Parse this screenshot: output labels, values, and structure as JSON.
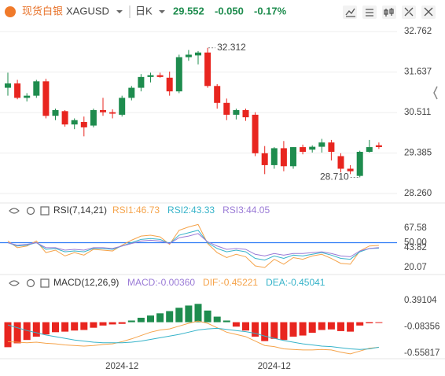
{
  "header": {
    "name": "现货白银",
    "symbol": "XAGUSD",
    "period": "日K",
    "price": "29.552",
    "change": "-0.050",
    "change_pct": "-0.17%"
  },
  "chart_data": [
    {
      "type": "candlestick",
      "up_color": "#1e8c4e",
      "down_color": "#e8251f",
      "open": [
        31.2,
        31.32,
        30.92,
        30.98,
        31.38,
        30.42,
        30.55,
        30.18,
        30.25,
        30.15,
        30.58,
        30.52,
        30.45,
        30.92,
        31.2,
        31.5,
        31.55,
        31.48,
        31.1,
        32.05,
        32.1,
        32.18,
        31.25,
        30.78,
        30.45,
        30.58,
        30.45,
        29.38,
        29.05,
        29.52,
        29.02,
        29.55,
        29.48,
        29.56,
        29.68,
        29.3,
        28.95,
        28.75,
        29.42,
        29.602
      ],
      "high": [
        31.62,
        31.42,
        31.05,
        31.42,
        31.45,
        30.62,
        30.58,
        30.35,
        30.4,
        30.62,
        30.92,
        30.6,
        30.98,
        31.25,
        31.58,
        31.62,
        31.62,
        31.65,
        32.12,
        32.25,
        32.22,
        32.312,
        31.3,
        30.9,
        30.62,
        30.62,
        30.52,
        29.58,
        29.55,
        29.72,
        29.55,
        29.62,
        29.6,
        29.78,
        29.75,
        29.38,
        29.05,
        29.45,
        29.75,
        29.68
      ],
      "low": [
        30.98,
        30.88,
        30.82,
        30.92,
        30.35,
        30.3,
        30.12,
        30.05,
        29.85,
        30.1,
        30.42,
        30.35,
        30.4,
        30.85,
        31.1,
        31.35,
        31.48,
        30.98,
        31.05,
        31.95,
        31.85,
        31.2,
        30.62,
        30.3,
        30.32,
        30.28,
        29.3,
        28.8,
        28.95,
        28.88,
        28.95,
        29.35,
        29.4,
        29.4,
        29.18,
        28.85,
        28.8,
        28.71,
        29.4,
        29.5
      ],
      "close": [
        31.32,
        30.92,
        30.98,
        31.38,
        30.42,
        30.58,
        30.18,
        30.3,
        30.1,
        30.58,
        30.52,
        30.48,
        30.92,
        31.2,
        31.5,
        31.55,
        31.5,
        31.1,
        32.05,
        32.12,
        32.18,
        31.25,
        30.78,
        30.45,
        30.58,
        30.38,
        29.38,
        29.05,
        29.52,
        29.02,
        29.55,
        29.42,
        29.56,
        29.68,
        29.42,
        28.95,
        28.88,
        29.42,
        29.55,
        29.552
      ],
      "annotations": [
        "32.312",
        "28.710"
      ],
      "ylim": [
        28.13,
        32.94
      ],
      "yticks": [
        32.762,
        31.637,
        30.511,
        29.385,
        {
          "value": 28.26,
          "label": "28.260"
        }
      ],
      "grid": true
    },
    {
      "type": "line",
      "title": "RSI(7,14,21)",
      "ylim": [
        12.5,
        75.2
      ],
      "yticks": [
        67.58,
        {
          "value": 50,
          "label": "50.00"
        },
        43.82,
        20.07
      ],
      "reference_tick": 1,
      "reference_color": "#2f7cf6",
      "series": [
        {
          "name": "RSI1:46.73",
          "color": "#f5a34a",
          "values": [
            52,
            44,
            46,
            52,
            38,
            41,
            34,
            38,
            35,
            42,
            41,
            40,
            47,
            53,
            58,
            59,
            57,
            48,
            65,
            69,
            72,
            49,
            38,
            32,
            36,
            33,
            22,
            20,
            30,
            24,
            32,
            30,
            34,
            36,
            31,
            25,
            24,
            40,
            46,
            46.73
          ]
        },
        {
          "name": "RSI2:43.33",
          "color": "#36b3c9",
          "values": [
            50,
            46,
            47,
            50,
            42,
            43,
            39,
            40,
            39,
            43,
            43,
            42,
            46,
            50,
            54,
            55,
            54,
            49,
            59,
            62,
            65,
            50,
            43,
            39,
            41,
            39,
            31,
            29,
            34,
            31,
            35,
            34,
            36,
            38,
            35,
            31,
            30,
            39,
            43,
            43.33
          ]
        },
        {
          "name": "RSI3:44.05",
          "color": "#9a7ad6",
          "values": [
            50,
            47,
            48,
            50,
            44,
            44,
            41,
            42,
            41,
            44,
            44,
            43,
            46,
            49,
            52,
            53,
            52,
            49,
            56,
            58,
            61,
            51,
            46,
            42,
            43,
            42,
            36,
            34,
            37,
            35,
            37,
            37,
            38,
            39,
            37,
            34,
            33,
            40,
            43,
            44.05
          ]
        }
      ]
    },
    {
      "type": "macd",
      "title": "MACD(12,26,9)",
      "ylim": [
        -0.643,
        0.561
      ],
      "yticks": [
        0.39104,
        -0.08356,
        -0.55817
      ],
      "categories": [
        null,
        null,
        null,
        null,
        null,
        null,
        null,
        null,
        null,
        null,
        null,
        null,
        "2024-12",
        null,
        null,
        null,
        null,
        null,
        null,
        null,
        null,
        null,
        null,
        null,
        null,
        null,
        null,
        null,
        "2024-12",
        null,
        null,
        null,
        null,
        null,
        null,
        null,
        null,
        null,
        null,
        null
      ],
      "series": [
        {
          "name": "MACD:-0.00360",
          "kind": "bar",
          "color": "#9a7ad6",
          "up_color": "#1e8c4e",
          "down_color": "#e8251f",
          "values": [
            -0.45,
            -0.38,
            -0.32,
            -0.26,
            -0.22,
            -0.18,
            -0.17,
            -0.15,
            -0.14,
            -0.1,
            -0.06,
            -0.04,
            -0.03,
            0.03,
            0.08,
            0.12,
            0.16,
            0.2,
            0.26,
            0.3,
            0.33,
            0.21,
            0.1,
            0.03,
            -0.08,
            -0.15,
            -0.26,
            -0.34,
            -0.3,
            -0.32,
            -0.26,
            -0.24,
            -0.19,
            -0.14,
            -0.13,
            -0.16,
            -0.17,
            -0.06,
            -0.02,
            -0.0036
          ]
        },
        {
          "name": "DIF:-0.45221",
          "kind": "line",
          "color": "#f5a34a",
          "values": [
            -0.35,
            -0.36,
            -0.37,
            -0.36,
            -0.38,
            -0.39,
            -0.41,
            -0.42,
            -0.43,
            -0.42,
            -0.4,
            -0.39,
            -0.35,
            -0.3,
            -0.24,
            -0.18,
            -0.14,
            -0.12,
            -0.07,
            -0.02,
            0.02,
            -0.02,
            -0.1,
            -0.18,
            -0.22,
            -0.26,
            -0.34,
            -0.42,
            -0.44,
            -0.48,
            -0.49,
            -0.5,
            -0.5,
            -0.49,
            -0.5,
            -0.54,
            -0.57,
            -0.52,
            -0.47,
            -0.45221
          ]
        },
        {
          "name": "DEA:-0.45041",
          "kind": "line",
          "color": "#36b3c9",
          "values": [
            -0.05,
            -0.1,
            -0.15,
            -0.19,
            -0.23,
            -0.26,
            -0.29,
            -0.32,
            -0.34,
            -0.36,
            -0.37,
            -0.37,
            -0.37,
            -0.36,
            -0.34,
            -0.31,
            -0.28,
            -0.25,
            -0.22,
            -0.18,
            -0.14,
            -0.12,
            -0.11,
            -0.13,
            -0.15,
            -0.17,
            -0.2,
            -0.25,
            -0.29,
            -0.33,
            -0.36,
            -0.39,
            -0.41,
            -0.43,
            -0.44,
            -0.46,
            -0.48,
            -0.49,
            -0.48,
            -0.45041
          ]
        }
      ]
    }
  ]
}
